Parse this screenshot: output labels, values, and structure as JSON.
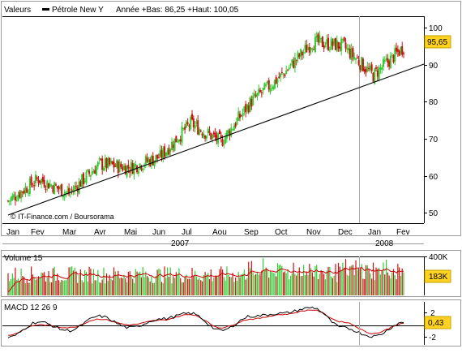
{
  "legend": {
    "prefix": "Valeurs",
    "instrument": "Pétrole New Y",
    "stats": "Année +Bas: 86,25 +Haut: 100,05"
  },
  "source": "© IT-Finance.com / Boursorama",
  "colors": {
    "up": "#33cc33",
    "down": "#cc1111",
    "trend": "#000000",
    "last_badge": "#ffd21f",
    "macd_line": "#000000",
    "signal_line": "#cc0000",
    "vol_avg": "#cc0000",
    "cursor": "#999999"
  },
  "price_panel": {
    "yticks": [
      "100",
      "90",
      "80",
      "70",
      "60",
      "50"
    ],
    "last_value": "95,65",
    "months": [
      "Jan",
      "Fev",
      "Mar",
      "Avr",
      "Mai",
      "Jun",
      "Jul",
      "Aou",
      "Sep",
      "Oct",
      "Nov",
      "Dec",
      "Jan",
      "Fev"
    ],
    "years": [
      "2007",
      "2008"
    ]
  },
  "volume_panel": {
    "title": "Volume 15",
    "ytick_top": "400K",
    "last_value": "183K"
  },
  "macd_panel": {
    "title": "MACD 12 26 9",
    "ytick_top": "2",
    "ytick_bottom": "-2",
    "last_value": "0,43"
  },
  "chart_data": [
    {
      "type": "candlestick",
      "title": "Pétrole New Y",
      "x": [
        "2007-01",
        "2007-02",
        "2007-03",
        "2007-04",
        "2007-05",
        "2007-06",
        "2007-07",
        "2007-08",
        "2007-09",
        "2007-10",
        "2007-11",
        "2007-12",
        "2008-01",
        "2008-02"
      ],
      "close": [
        54,
        60,
        56,
        64,
        63,
        66,
        75,
        70,
        81,
        88,
        97,
        96,
        88,
        95.65
      ],
      "low_year": 86.25,
      "high_year": 100.05,
      "last": 95.65,
      "ylim": [
        48,
        104
      ],
      "yticks": [
        50,
        60,
        70,
        80,
        90,
        100
      ],
      "trendline": [
        {
          "x": "2007-01",
          "y": 49.5
        },
        {
          "x": "2008-02",
          "y": 89
        }
      ]
    },
    {
      "type": "bar",
      "title": "Volume 15",
      "last": 183000,
      "ymax": 400000,
      "average_series": true
    },
    {
      "type": "line",
      "title": "MACD 12 26 9",
      "series": [
        {
          "name": "MACD",
          "values": [
            -2.2,
            0.5,
            -1,
            1.5,
            -0.5,
            1,
            2,
            -1,
            1.5,
            2,
            3,
            -0.5,
            -2,
            0.43
          ]
        },
        {
          "name": "signal",
          "values": [
            -1.8,
            0,
            -0.5,
            1,
            0,
            0.8,
            1.8,
            -0.5,
            1,
            1.8,
            2.6,
            0.5,
            -1.5,
            0.2
          ]
        }
      ],
      "last": 0.43,
      "ylim": [
        -3.5,
        4
      ],
      "yticks": [
        2,
        -2
      ]
    }
  ]
}
